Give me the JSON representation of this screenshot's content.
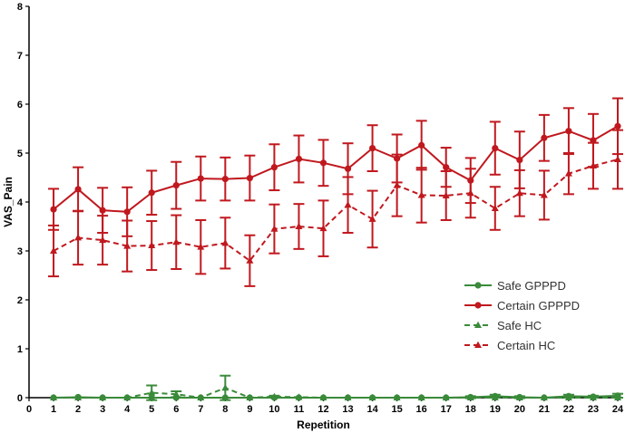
{
  "chart_data": {
    "type": "line",
    "xlabel": "Repetition",
    "ylabel": "VAS_Pain",
    "xlim": [
      0,
      24
    ],
    "ylim": [
      0,
      8
    ],
    "x_ticks": [
      "0",
      "1",
      "2",
      "3",
      "4",
      "5",
      "6",
      "7",
      "8",
      "9",
      "10",
      "11",
      "12",
      "13",
      "14",
      "15",
      "16",
      "17",
      "18",
      "19",
      "20",
      "21",
      "22",
      "23",
      "24"
    ],
    "y_ticks": [
      "0",
      "1",
      "2",
      "3",
      "4",
      "5",
      "6",
      "7",
      "8"
    ],
    "grid": false,
    "legend_position": "bottom-right",
    "x": [
      1,
      2,
      3,
      4,
      5,
      6,
      7,
      8,
      9,
      10,
      11,
      12,
      13,
      14,
      15,
      16,
      17,
      18,
      19,
      20,
      21,
      22,
      23,
      24
    ],
    "series": [
      {
        "name": "Safe GPPPD",
        "color": "#3a8a3a",
        "line_style": "solid",
        "marker": "circle",
        "values": [
          0.0,
          0.01,
          0.0,
          0.0,
          0.0,
          0.0,
          0.0,
          0.0,
          0.0,
          0.0,
          0.0,
          0.0,
          0.0,
          0.0,
          0.0,
          0.0,
          0.0,
          0.01,
          0.03,
          0.01,
          0.0,
          0.03,
          0.02,
          0.04
        ],
        "errors": [
          0.01,
          0.01,
          0.01,
          0.01,
          0.01,
          0.01,
          0.01,
          0.01,
          0.01,
          0.01,
          0.01,
          0.01,
          0.01,
          0.01,
          0.01,
          0.01,
          0.01,
          0.02,
          0.03,
          0.02,
          0.01,
          0.03,
          0.02,
          0.04
        ]
      },
      {
        "name": "Certain GPPPD",
        "color": "#c0181e",
        "line_style": "solid",
        "marker": "circle",
        "values": [
          3.85,
          4.26,
          3.83,
          3.8,
          4.19,
          4.34,
          4.48,
          4.47,
          4.49,
          4.71,
          4.88,
          4.8,
          4.68,
          5.1,
          4.89,
          5.16,
          4.71,
          4.44,
          5.1,
          4.86,
          5.31,
          5.45,
          5.26,
          5.55
        ],
        "errors": [
          0.42,
          0.45,
          0.46,
          0.5,
          0.45,
          0.48,
          0.45,
          0.44,
          0.46,
          0.47,
          0.48,
          0.47,
          0.52,
          0.47,
          0.49,
          0.5,
          0.4,
          0.46,
          0.54,
          0.58,
          0.47,
          0.47,
          0.54,
          0.57
        ]
      },
      {
        "name": "Safe HC",
        "color": "#3a8a3a",
        "line_style": "dashed",
        "marker": "triangle",
        "values": [
          0.0,
          0.0,
          0.0,
          0.0,
          0.1,
          0.07,
          0.0,
          0.2,
          0.0,
          0.02,
          0.01,
          0.0,
          0.0,
          0.0,
          0.0,
          0.0,
          0.0,
          0.0,
          0.0,
          0.0,
          0.0,
          0.0,
          0.0,
          0.0
        ],
        "errors": [
          0.01,
          0.01,
          0.01,
          0.01,
          0.15,
          0.06,
          0.01,
          0.25,
          0.01,
          0.02,
          0.01,
          0.01,
          0.01,
          0.01,
          0.01,
          0.01,
          0.01,
          0.01,
          0.01,
          0.01,
          0.01,
          0.01,
          0.01,
          0.01
        ]
      },
      {
        "name": "Certain HC",
        "color": "#c0181e",
        "line_style": "dashed",
        "marker": "triangle",
        "values": [
          3.0,
          3.27,
          3.22,
          3.1,
          3.11,
          3.18,
          3.08,
          3.16,
          2.8,
          3.45,
          3.5,
          3.46,
          3.94,
          3.65,
          4.34,
          4.14,
          4.13,
          4.18,
          3.87,
          4.18,
          4.14,
          4.58,
          4.74,
          4.87
        ],
        "errors": [
          0.52,
          0.55,
          0.5,
          0.52,
          0.5,
          0.55,
          0.55,
          0.52,
          0.52,
          0.5,
          0.46,
          0.57,
          0.57,
          0.58,
          0.63,
          0.56,
          0.5,
          0.5,
          0.44,
          0.47,
          0.5,
          0.42,
          0.47,
          0.6
        ]
      }
    ]
  }
}
